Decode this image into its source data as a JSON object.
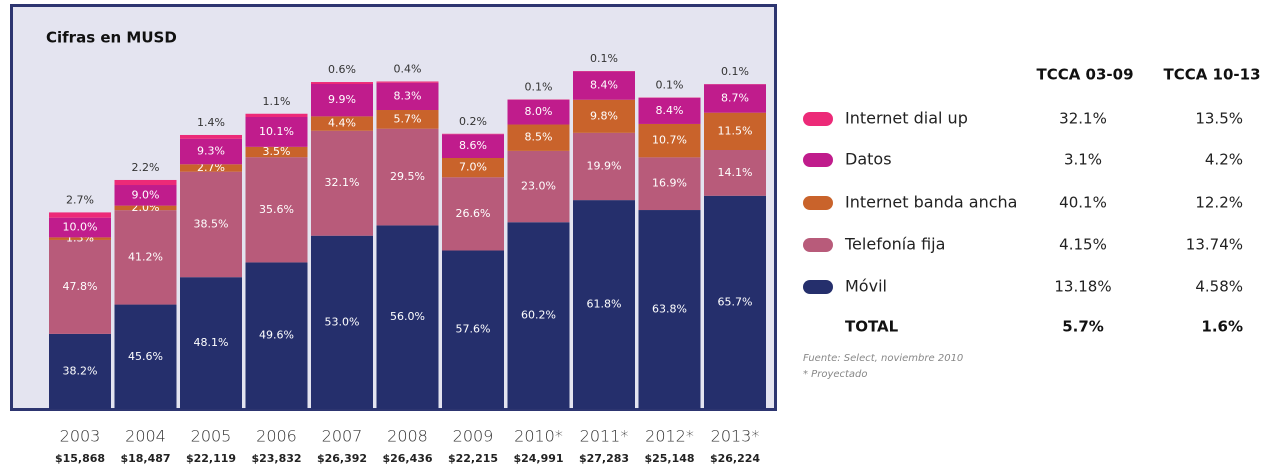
{
  "chart_data": {
    "type": "bar",
    "stacked": true,
    "title": "Cifras en MUSD",
    "categories": [
      "2003",
      "2004",
      "2005",
      "2006",
      "2007",
      "2008",
      "2009",
      "2010*",
      "2011*",
      "2012*",
      "2013*"
    ],
    "totals": [
      {
        "value": 15868,
        "label": "$15,868"
      },
      {
        "value": 18487,
        "label": "$18,487"
      },
      {
        "value": 22119,
        "label": "$22,119"
      },
      {
        "value": 23832,
        "label": "$23,832"
      },
      {
        "value": 26392,
        "label": "$26,392"
      },
      {
        "value": 26436,
        "label": "$26,436"
      },
      {
        "value": 22215,
        "label": "$22,215"
      },
      {
        "value": 24991,
        "label": "$24,991"
      },
      {
        "value": 27283,
        "label": "$27,283"
      },
      {
        "value": 25148,
        "label": "$25,148"
      },
      {
        "value": 26224,
        "label": "$26,224"
      }
    ],
    "series": [
      {
        "name": "Móvil",
        "color": "#252f6c",
        "values": [
          38.2,
          45.6,
          48.1,
          49.6,
          53.0,
          56.0,
          57.6,
          60.2,
          61.8,
          63.8,
          65.7
        ],
        "value_labels": [
          "38.2%",
          "45.6%",
          "48.1%",
          "49.6%",
          "53.0%",
          "56.0%",
          "57.6%",
          "60.2%",
          "61.8%",
          "63.8%",
          "65.7%"
        ]
      },
      {
        "name": "Telefonía fija",
        "color": "#b85b7a",
        "values": [
          47.8,
          41.2,
          38.5,
          35.6,
          32.1,
          29.5,
          26.6,
          23.0,
          19.9,
          16.9,
          14.1
        ],
        "value_labels": [
          "47.8%",
          "41.2%",
          "38.5%",
          "35.6%",
          "32.1%",
          "29.5%",
          "26.6%",
          "23.0%",
          "19.9%",
          "16.9%",
          "14.1%"
        ]
      },
      {
        "name": "Internet banda ancha",
        "color": "#c9632b",
        "values": [
          1.3,
          2.0,
          2.7,
          3.5,
          4.4,
          5.7,
          7.0,
          8.5,
          9.8,
          10.7,
          11.5
        ],
        "value_labels": [
          "1.3%",
          "2.0%",
          "2.7%",
          "3.5%",
          "4.4%",
          "5.7%",
          "7.0%",
          "8.5%",
          "9.8%",
          "10.7%",
          "11.5%"
        ]
      },
      {
        "name": "Datos",
        "color": "#c01c8c",
        "values": [
          10.0,
          9.0,
          9.3,
          10.1,
          9.9,
          8.3,
          8.6,
          8.0,
          8.4,
          8.4,
          8.7
        ],
        "value_labels": [
          "10.0%",
          "9.0%",
          "9.3%",
          "10.1%",
          "9.9%",
          "8.3%",
          "8.6%",
          "8.0%",
          "8.4%",
          "8.4%",
          "8.7%"
        ]
      },
      {
        "name": "Internet dial up",
        "color": "#ec2a78",
        "values": [
          2.7,
          2.2,
          1.4,
          1.1,
          0.6,
          0.4,
          0.2,
          0.1,
          0.1,
          0.1,
          0.1
        ],
        "value_labels": [
          "2.7%",
          "2.2%",
          "1.4%",
          "1.1%",
          "0.6%",
          "0.4%",
          "0.2%",
          "0.1%",
          "0.1%",
          "0.1%",
          "0.1%"
        ]
      }
    ]
  },
  "growth_table": {
    "columns": [
      "TCCA 03-09",
      "TCCA 10-13"
    ],
    "rows": [
      [
        "32.1%",
        "13.5%"
      ],
      [
        "3.1%",
        "4.2%"
      ],
      [
        "40.1%",
        "12.2%"
      ],
      [
        "4.15%",
        "13.74%"
      ],
      [
        "13.18%",
        "4.58%"
      ]
    ],
    "total": {
      "label": "TOTAL",
      "values": [
        "5.7%",
        "1.6%"
      ]
    }
  },
  "notes": [
    "Fuente: Select, noviembre 2010",
    "* Proyectado"
  ]
}
